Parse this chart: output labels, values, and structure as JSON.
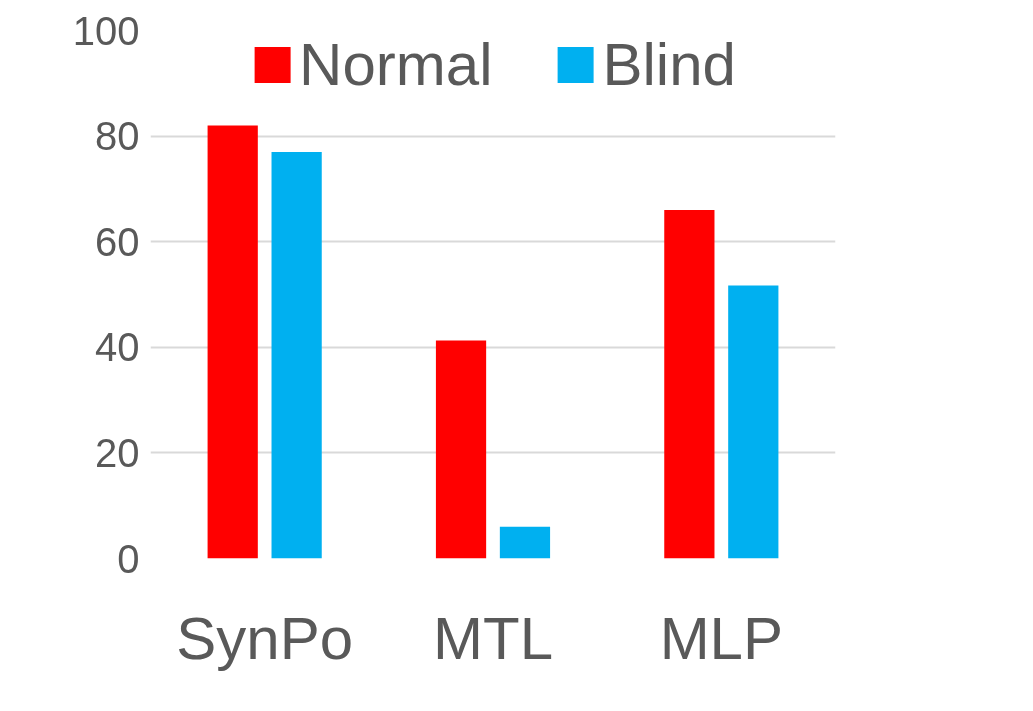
{
  "chart_data": {
    "type": "bar",
    "categories": [
      "SynPo",
      "MTL",
      "MLP"
    ],
    "series": [
      {
        "name": "Normal",
        "color": "#ff0000",
        "values": [
          82,
          41.3,
          66
        ]
      },
      {
        "name": "Blind",
        "color": "#00b0f0",
        "values": [
          77,
          6,
          51.7
        ]
      }
    ],
    "ylim": [
      0,
      100
    ],
    "yticks": [
      0,
      20,
      40,
      60,
      80,
      100
    ],
    "grid": "y",
    "legend": "top"
  }
}
